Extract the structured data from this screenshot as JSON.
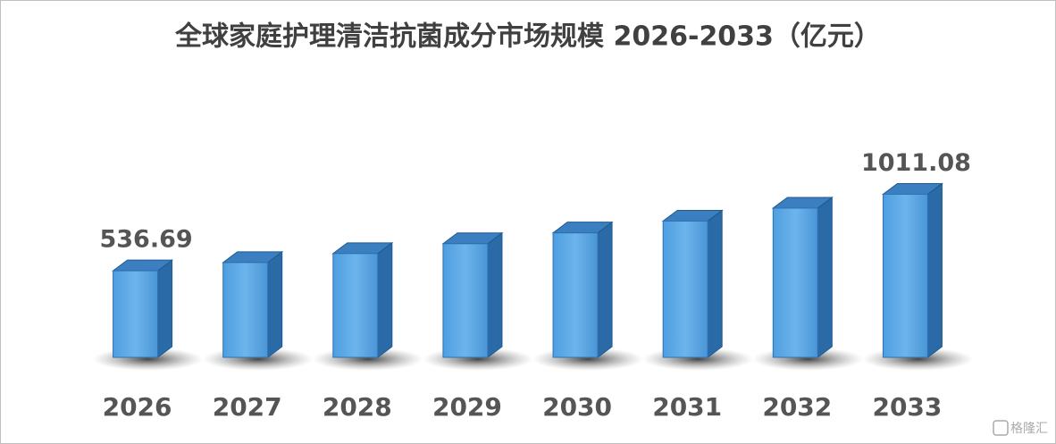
{
  "chart_data": {
    "type": "bar3d",
    "title": "全球家庭护理清洁抗菌成分市场规模 2026-2033（亿元）",
    "categories": [
      "2026",
      "2027",
      "2028",
      "2029",
      "2030",
      "2031",
      "2032",
      "2033"
    ],
    "values": [
      536.69,
      587.7,
      643.5,
      704.6,
      771.6,
      844.9,
      925.2,
      1011.08
    ],
    "value_labels": [
      "536.69",
      null,
      null,
      null,
      null,
      null,
      null,
      "1011.08"
    ],
    "color": "#3d8fd8",
    "ylim": [
      0,
      1800
    ],
    "grid": false
  },
  "watermark": "格隆汇"
}
